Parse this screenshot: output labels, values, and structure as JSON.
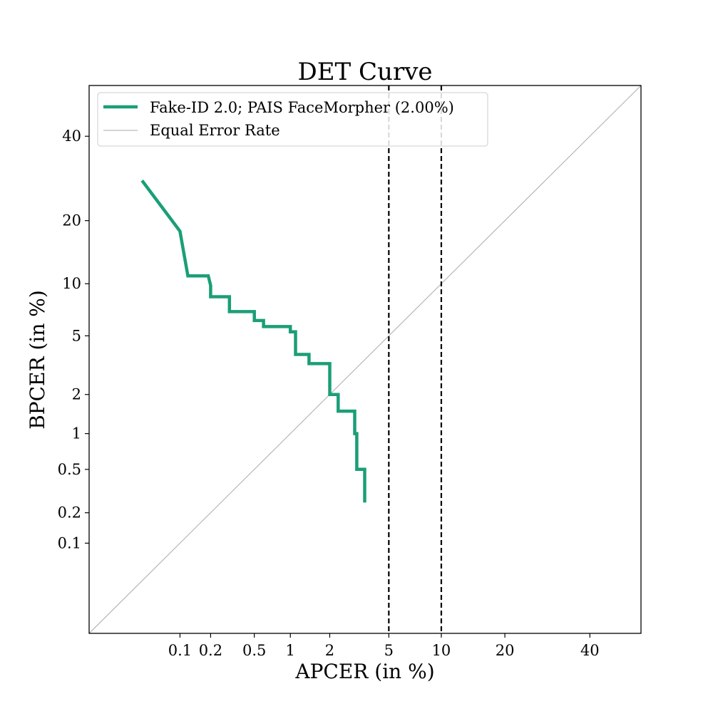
{
  "chart_data": {
    "type": "line",
    "scale": "normal-deviate (DET)",
    "title": "DET Curve",
    "xlabel": "APCER (in %)",
    "ylabel": "BPCER (in %)",
    "xlim": [
      0.01,
      54
    ],
    "ylim": [
      0.01,
      54
    ],
    "x_ticks": [
      0.1,
      0.2,
      0.5,
      1,
      2,
      5,
      10,
      20,
      40
    ],
    "x_tick_labels": [
      "0.1",
      "0.2",
      "0.5",
      "1",
      "2",
      "5",
      "10",
      "20",
      "40"
    ],
    "y_ticks": [
      0.1,
      0.2,
      0.5,
      1,
      2,
      5,
      10,
      20,
      40
    ],
    "y_tick_labels": [
      "0.1",
      "0.2",
      "0.5",
      "1",
      "2",
      "5",
      "10",
      "20",
      "40"
    ],
    "reference_lines": [
      {
        "name": "APCER = 5%",
        "x": 5,
        "style": "dashed",
        "color": "#000000"
      },
      {
        "name": "APCER = 10%",
        "x": 10,
        "style": "dashed",
        "color": "#000000"
      }
    ],
    "series": [
      {
        "name": "Fake-ID 2.0; PAIS FaceMorpher (2.00%)",
        "color": "#1b9e77",
        "points": [
          [
            0.04,
            28.7
          ],
          [
            0.1,
            18.0
          ],
          [
            0.12,
            11.0
          ],
          [
            0.19,
            11.0
          ],
          [
            0.2,
            9.8
          ],
          [
            0.2,
            8.5
          ],
          [
            0.3,
            8.5
          ],
          [
            0.3,
            7.0
          ],
          [
            0.5,
            7.0
          ],
          [
            0.5,
            6.2
          ],
          [
            0.6,
            6.2
          ],
          [
            0.6,
            5.7
          ],
          [
            1.0,
            5.7
          ],
          [
            1.0,
            5.3
          ],
          [
            1.1,
            5.3
          ],
          [
            1.1,
            3.8
          ],
          [
            1.4,
            3.8
          ],
          [
            1.4,
            3.3
          ],
          [
            2.0,
            3.3
          ],
          [
            2.0,
            2.0
          ],
          [
            2.3,
            2.0
          ],
          [
            2.3,
            1.5
          ],
          [
            3.0,
            1.5
          ],
          [
            3.0,
            1.0
          ],
          [
            3.1,
            1.0
          ],
          [
            3.1,
            0.5
          ],
          [
            3.5,
            0.5
          ],
          [
            3.5,
            0.25
          ]
        ]
      },
      {
        "name": "Equal Error Rate",
        "color": "#aaaaaa",
        "diagonal": true
      }
    ],
    "legend_position": "top-left"
  }
}
